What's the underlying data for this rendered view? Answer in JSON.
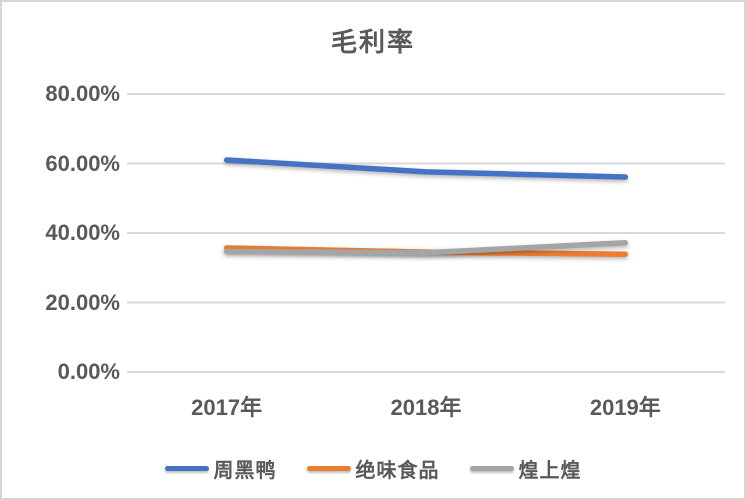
{
  "frame": {
    "border_color": "#d6d6d6",
    "background_color": "#ffffff",
    "text_color": "#595959"
  },
  "chart_data": {
    "type": "line",
    "title": "毛利率",
    "categories": [
      "2017年",
      "2018年",
      "2019年"
    ],
    "series": [
      {
        "name": "周黑鸭",
        "color": "#4472C4",
        "values": [
          61.0,
          57.6,
          56.1
        ]
      },
      {
        "name": "绝味食品",
        "color": "#ED7D31",
        "values": [
          35.7,
          34.5,
          33.9
        ]
      },
      {
        "name": "煌上煌",
        "color": "#A5A5A5",
        "values": [
          34.7,
          34.3,
          37.2
        ]
      }
    ],
    "ylim": [
      0,
      80
    ],
    "ytick_values": [
      0,
      20,
      40,
      60,
      80
    ],
    "ytick_labels": [
      "0.00%",
      "20.00%",
      "40.00%",
      "60.00%",
      "80.00%"
    ],
    "xlabel": "",
    "ylabel": "",
    "grid": true,
    "gridline_color": "#d9d9d9",
    "legend_position": "bottom"
  }
}
